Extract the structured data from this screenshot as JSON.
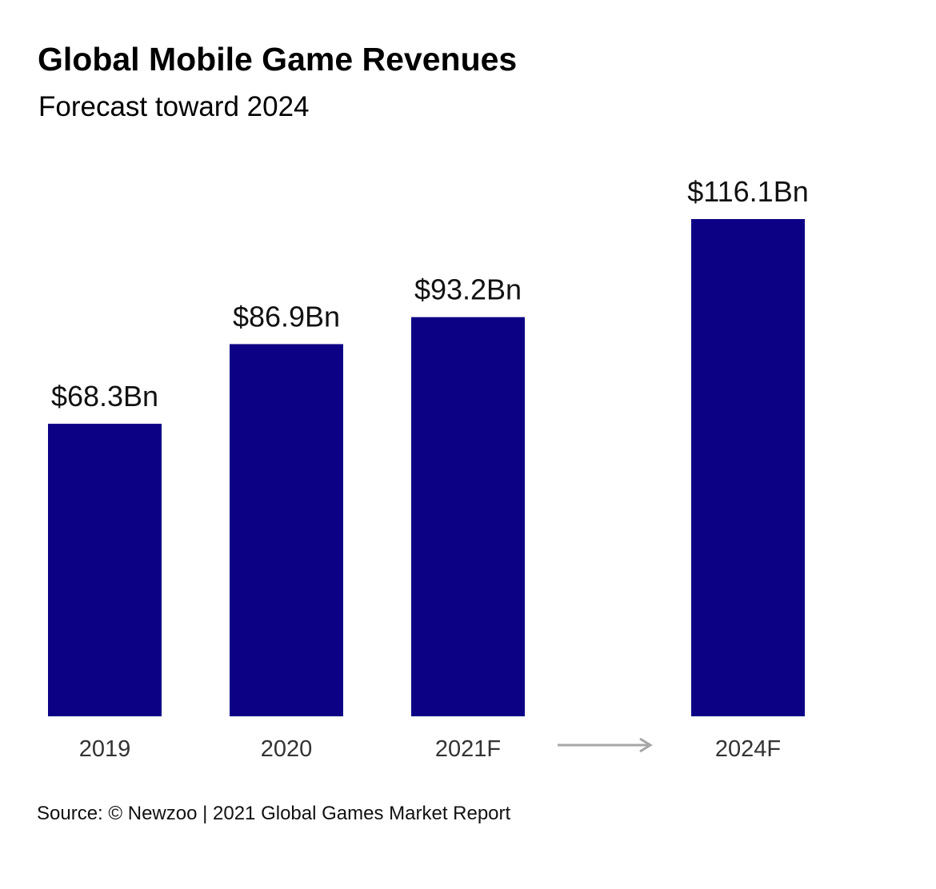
{
  "chart_data": {
    "type": "bar",
    "title": "Global Mobile Game Revenues",
    "subtitle": "Forecast toward 2024",
    "categories": [
      "2019",
      "2020",
      "2021F",
      "2024F"
    ],
    "values": [
      68.3,
      86.9,
      93.2,
      116.1
    ],
    "value_labels": [
      "$68.3Bn",
      "$86.9Bn",
      "$93.2Bn",
      "$116.1Bn"
    ],
    "unit": "Bn",
    "ylim": [
      0,
      116.1
    ],
    "grid": false,
    "legend": "none",
    "bar_color": "#0c0085",
    "arrow_color": "#a6a6a6",
    "source": "Source: © Newzoo | 2021 Global Games Market Report"
  }
}
